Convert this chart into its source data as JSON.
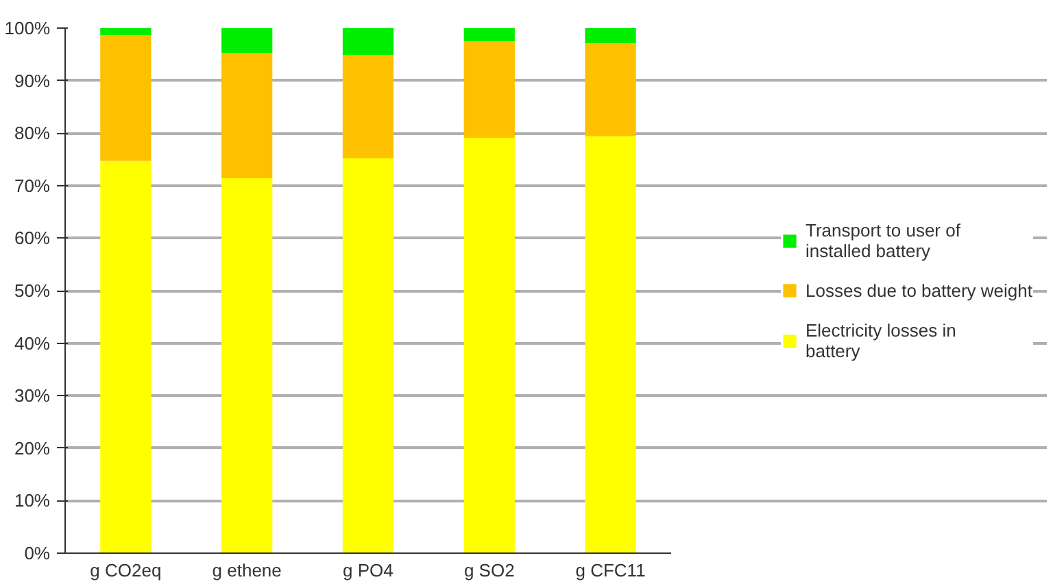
{
  "chart_data": {
    "type": "bar",
    "stacked": true,
    "categories": [
      "g CO2eq",
      "g ethene",
      "g PO4",
      "g SO2",
      "g CFC11"
    ],
    "series": [
      {
        "name": "Electricity losses in battery",
        "color": "#ffff00",
        "values": [
          74.7,
          71.4,
          75.2,
          79.1,
          79.4
        ]
      },
      {
        "name": "Losses due to battery weight",
        "color": "#ffc000",
        "values": [
          24.0,
          23.9,
          19.7,
          18.4,
          17.7
        ]
      },
      {
        "name": "Transport to user of installed battery",
        "color": "#00ee00",
        "values": [
          1.3,
          4.7,
          5.1,
          2.5,
          2.9
        ]
      }
    ],
    "ylim": [
      0,
      100
    ],
    "yticks": [
      {
        "value": 0,
        "label": "0%"
      },
      {
        "value": 10,
        "label": "10%"
      },
      {
        "value": 20,
        "label": "20%"
      },
      {
        "value": 30,
        "label": "30%"
      },
      {
        "value": 40,
        "label": "40%"
      },
      {
        "value": 50,
        "label": "50%"
      },
      {
        "value": 60,
        "label": "60%"
      },
      {
        "value": 70,
        "label": "70%"
      },
      {
        "value": 80,
        "label": "80%"
      },
      {
        "value": 90,
        "label": "90%"
      },
      {
        "value": 100,
        "label": "100%"
      }
    ],
    "grid": "y",
    "legend": "right"
  }
}
